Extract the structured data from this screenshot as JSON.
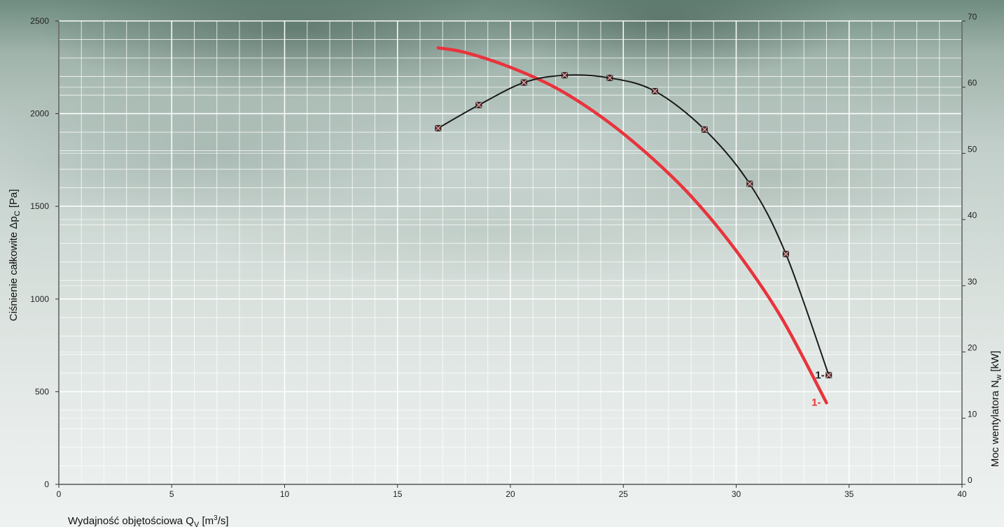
{
  "chart_data": {
    "type": "line",
    "title": "",
    "xlabel": {
      "main": "Wydajność objętościowa Q",
      "sub": "V",
      "unit_pre": " [m",
      "sup": "3",
      "unit_post": "/s]"
    },
    "ylabel_left": {
      "main": "Ciśnienie całkowite Δp",
      "sub": "C",
      "unit": " [Pa]"
    },
    "ylabel_right": {
      "main": "Moc wentylatora N",
      "sub": "w",
      "unit": " [kW]"
    },
    "xlim": [
      0,
      40
    ],
    "ylim_left": [
      0,
      2500
    ],
    "ylim_right": [
      0,
      70
    ],
    "xticks": [
      0,
      5,
      10,
      15,
      20,
      25,
      30,
      35,
      40
    ],
    "yticks_left": [
      0,
      500,
      1000,
      1500,
      2000,
      2500
    ],
    "yticks_right": [
      0,
      10,
      20,
      30,
      40,
      50,
      60,
      70
    ],
    "grid": true,
    "series": [
      {
        "name": "1-",
        "axis": "left",
        "color": "#e8343c",
        "x": [
          16.8,
          18,
          20,
          22,
          24,
          26,
          28,
          30,
          32,
          34
        ],
        "y": [
          2355,
          2330,
          2250,
          2140,
          1985,
          1790,
          1555,
          1260,
          900,
          440
        ]
      },
      {
        "name": "1-",
        "axis": "right",
        "color": "#1a1a1a",
        "markers": true,
        "x": [
          16.8,
          18.6,
          20.6,
          22.4,
          24.4,
          26.4,
          28.6,
          30.6,
          32.2,
          34.1
        ],
        "y": [
          53.8,
          57.3,
          60.7,
          61.8,
          61.4,
          59.4,
          53.6,
          45.4,
          34.8,
          16.5
        ]
      }
    ]
  },
  "colors": {
    "grid": "#ffffff",
    "axis": "#333333",
    "marker": "#6b2a2a"
  }
}
